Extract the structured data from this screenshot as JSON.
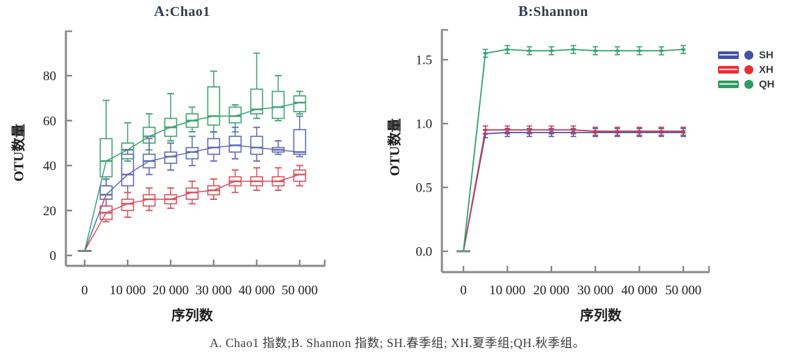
{
  "figure": {
    "caption": "A. Chao1 指数;B. Shannon 指数; SH.春季组; XH.夏季组;QH.秋季组。"
  },
  "legend": {
    "items": [
      {
        "label": "SH",
        "color": "#4053a6"
      },
      {
        "label": "XH",
        "color": "#e63230"
      },
      {
        "label": "QH",
        "color": "#2f9e63"
      }
    ]
  },
  "chart_data": [
    {
      "type": "boxplot",
      "panel": "A",
      "title": "A:Chao1",
      "title_letter": "A",
      "title_rest": ":Chao1",
      "xlabel": "序列数",
      "ylabel": "OTU数量",
      "xlim": [
        -3000,
        55500
      ],
      "ylim": [
        0,
        98
      ],
      "grid": false,
      "yticks": [
        0,
        20,
        40,
        60,
        80
      ],
      "ytick_labels": [
        "0",
        "20",
        "40",
        "60",
        "80"
      ],
      "xticks": [
        0,
        10000,
        20000,
        30000,
        40000,
        50000
      ],
      "xtick_labels": [
        "0",
        "10 000",
        "20 000",
        "30 000",
        "40 000",
        "50 000"
      ],
      "x": [
        5000,
        10000,
        15000,
        20000,
        25000,
        30000,
        35000,
        40000,
        45000,
        50000
      ],
      "origin": {
        "x": 0,
        "value": 2
      },
      "series": [
        {
          "name": "QH",
          "color": "#3da271",
          "median": [
            42,
            47,
            53,
            57,
            60,
            62,
            62,
            65,
            66,
            68
          ],
          "q1": [
            35,
            43,
            50,
            53,
            57,
            58,
            59,
            63,
            61,
            64
          ],
          "q3": [
            52,
            50,
            57,
            61,
            63,
            75,
            66,
            74,
            73,
            71
          ],
          "whisker_low": [
            31,
            42,
            47,
            51,
            55,
            55,
            55,
            61,
            60,
            63
          ],
          "whisker_high": [
            69,
            59,
            63,
            72,
            66,
            82,
            67,
            90,
            80,
            73
          ]
        },
        {
          "name": "SH",
          "color": "#5f6ab0",
          "median": [
            27,
            36,
            42,
            44,
            46,
            48,
            49,
            48,
            47,
            46
          ],
          "q1": [
            25,
            31,
            39,
            41,
            43,
            45,
            46,
            45,
            46,
            45
          ],
          "q3": [
            31,
            45,
            45,
            46,
            48,
            52,
            53,
            53,
            48,
            56
          ],
          "whisker_low": [
            22,
            28,
            36,
            38,
            40,
            42,
            43,
            42,
            45,
            44
          ],
          "whisker_high": [
            34,
            47,
            52,
            50,
            53,
            55,
            57,
            57,
            51,
            62
          ]
        },
        {
          "name": "XH",
          "color": "#d9505c",
          "median": [
            19,
            23,
            25,
            25,
            28,
            29,
            33,
            33,
            33,
            36
          ],
          "q1": [
            16,
            20,
            22,
            23,
            25,
            27,
            31,
            31,
            31,
            33
          ],
          "q3": [
            22,
            25,
            27,
            27,
            30,
            31,
            35,
            35,
            35,
            38
          ],
          "whisker_low": [
            15,
            17,
            20,
            21,
            23,
            25,
            28,
            29,
            29,
            31
          ],
          "whisker_high": [
            25,
            28,
            30,
            30,
            33,
            34,
            38,
            39,
            39,
            40
          ]
        }
      ]
    },
    {
      "type": "line",
      "panel": "B",
      "title": "B:Shannon",
      "title_letter": "B",
      "title_rest": ":Shannon",
      "xlabel": "序列数",
      "ylabel": "OTU数量",
      "xlim": [
        -3000,
        55500
      ],
      "ylim": [
        0,
        1.73
      ],
      "grid": false,
      "yticks": [
        0,
        0.5,
        1.0,
        1.5
      ],
      "ytick_labels": [
        "0.0",
        "0.5",
        "1.0",
        "1.5"
      ],
      "xticks": [
        0,
        10000,
        20000,
        30000,
        40000,
        50000
      ],
      "xtick_labels": [
        "0",
        "10 000",
        "20 000",
        "30 000",
        "40 000",
        "50 000"
      ],
      "x": [
        0,
        5000,
        10000,
        15000,
        20000,
        25000,
        30000,
        35000,
        40000,
        45000,
        50000
      ],
      "error_bar": 0.02,
      "series": [
        {
          "name": "SH",
          "color": "#4356a8",
          "values": [
            0,
            0.92,
            0.93,
            0.93,
            0.93,
            0.93,
            0.93,
            0.93,
            0.93,
            0.93,
            0.93
          ]
        },
        {
          "name": "XH",
          "color": "#c23e52",
          "values": [
            0,
            0.95,
            0.95,
            0.95,
            0.95,
            0.95,
            0.94,
            0.94,
            0.94,
            0.94,
            0.94
          ]
        },
        {
          "name": "QH",
          "color": "#2fa06b",
          "values": [
            0,
            1.55,
            1.58,
            1.57,
            1.57,
            1.58,
            1.57,
            1.57,
            1.57,
            1.57,
            1.58
          ]
        }
      ]
    }
  ]
}
